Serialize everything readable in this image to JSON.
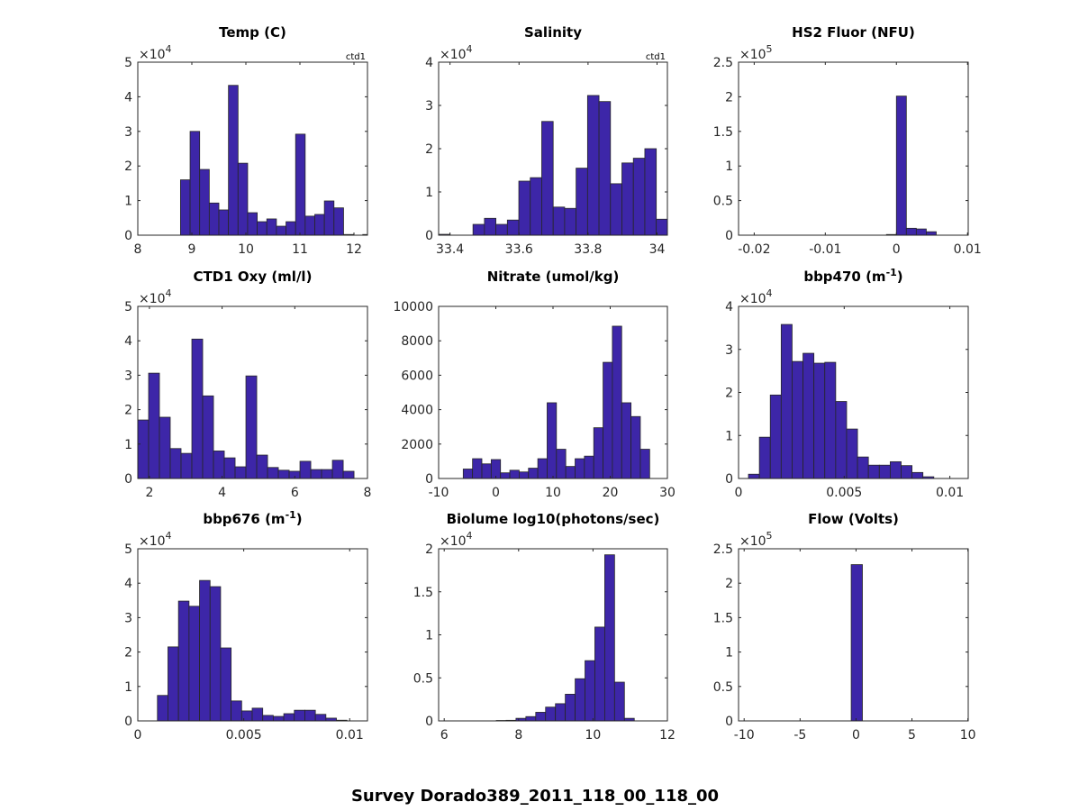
{
  "figure_title": "Survey Dorado389_2011_118_00_118_00",
  "colors": {
    "bar": "#3d26a8",
    "edge": "#262626",
    "axis": "#262626"
  },
  "chart_data": [
    {
      "type": "bar",
      "title": "Temp (C)",
      "title_sup": "",
      "title_end": "",
      "corner_label": "ctd1",
      "exponent": "4",
      "xlim": [
        8,
        12.25
      ],
      "ylim": [
        0,
        5
      ],
      "xticks": [
        {
          "v": 8,
          "label": "8"
        },
        {
          "v": 9,
          "label": "9"
        },
        {
          "v": 10,
          "label": "10"
        },
        {
          "v": 11,
          "label": "11"
        },
        {
          "v": 12,
          "label": "12"
        }
      ],
      "yticks": [
        {
          "v": 0,
          "label": "0"
        },
        {
          "v": 1,
          "label": "1"
        },
        {
          "v": 2,
          "label": "2"
        },
        {
          "v": 3,
          "label": "3"
        },
        {
          "v": 4,
          "label": "4"
        },
        {
          "v": 5,
          "label": "5"
        }
      ],
      "bin_start": 8.79,
      "bin_width": 0.1775,
      "counts": [
        1.6,
        3.0,
        1.9,
        0.93,
        0.73,
        4.33,
        2.08,
        0.65,
        0.39,
        0.47,
        0.26,
        0.39,
        2.92,
        0.55,
        0.6,
        0.99,
        0.79,
        0.02,
        0,
        0.02
      ]
    },
    {
      "type": "bar",
      "title": "Salinity",
      "title_sup": "",
      "title_end": "",
      "corner_label": "ctd1",
      "exponent": "4",
      "xlim": [
        33.367,
        34.03
      ],
      "ylim": [
        0,
        4
      ],
      "xticks": [
        {
          "v": 33.4,
          "label": "33.4"
        },
        {
          "v": 33.6,
          "label": "33.6"
        },
        {
          "v": 33.8,
          "label": "33.8"
        },
        {
          "v": 34,
          "label": "34"
        }
      ],
      "yticks": [
        {
          "v": 0,
          "label": "0"
        },
        {
          "v": 1,
          "label": "1"
        },
        {
          "v": 2,
          "label": "2"
        },
        {
          "v": 3,
          "label": "3"
        },
        {
          "v": 4,
          "label": "4"
        }
      ],
      "bin_start": 33.367,
      "bin_width": 0.0332,
      "counts": [
        0.02,
        0,
        0,
        0.25,
        0.39,
        0.25,
        0.35,
        1.25,
        1.33,
        2.63,
        0.65,
        0.62,
        1.55,
        3.23,
        3.09,
        1.19,
        1.67,
        1.78,
        2.0,
        0.37
      ]
    },
    {
      "type": "bar",
      "title": "HS2 Fluor (NFU)",
      "title_sup": "",
      "title_end": "",
      "corner_label": "",
      "exponent": "5",
      "xlim": [
        -0.0222,
        0.0101
      ],
      "ylim": [
        0,
        2.5
      ],
      "xticks": [
        {
          "v": -0.02,
          "label": "-0.02"
        },
        {
          "v": -0.01,
          "label": "-0.01"
        },
        {
          "v": 0,
          "label": "0"
        },
        {
          "v": 0.01,
          "label": "0.01"
        }
      ],
      "yticks": [
        {
          "v": 0,
          "label": "0"
        },
        {
          "v": 0.5,
          "label": "0.5"
        },
        {
          "v": 1,
          "label": "1"
        },
        {
          "v": 1.5,
          "label": "1.5"
        },
        {
          "v": 2,
          "label": "2"
        },
        {
          "v": 2.5,
          "label": "2.5"
        }
      ],
      "bin_start": -0.0014,
      "bin_width": 0.0014,
      "counts": [
        0.01,
        2.01,
        0.1,
        0.09,
        0.05
      ]
    },
    {
      "type": "bar",
      "title": "CTD1 Oxy (ml/l)",
      "title_sup": "",
      "title_end": "",
      "corner_label": "",
      "exponent": "4",
      "xlim": [
        1.68,
        8
      ],
      "ylim": [
        0,
        5
      ],
      "xticks": [
        {
          "v": 2,
          "label": "2"
        },
        {
          "v": 4,
          "label": "4"
        },
        {
          "v": 6,
          "label": "6"
        },
        {
          "v": 8,
          "label": "8"
        }
      ],
      "yticks": [
        {
          "v": 0,
          "label": "0"
        },
        {
          "v": 1,
          "label": "1"
        },
        {
          "v": 2,
          "label": "2"
        },
        {
          "v": 3,
          "label": "3"
        },
        {
          "v": 4,
          "label": "4"
        },
        {
          "v": 5,
          "label": "5"
        }
      ],
      "bin_start": 1.68,
      "bin_width": 0.2975,
      "counts": [
        1.7,
        3.06,
        1.78,
        0.87,
        0.73,
        4.05,
        2.4,
        0.8,
        0.6,
        0.34,
        2.98,
        0.68,
        0.32,
        0.24,
        0.21,
        0.5,
        0.26,
        0.26,
        0.53,
        0.21
      ]
    },
    {
      "type": "bar",
      "title": "Nitrate (umol/kg)",
      "title_sup": "",
      "title_end": "",
      "corner_label": "",
      "exponent": "",
      "xlim": [
        -10,
        30
      ],
      "ylim": [
        0,
        10000
      ],
      "xticks": [
        {
          "v": -10,
          "label": "-10"
        },
        {
          "v": 0,
          "label": "0"
        },
        {
          "v": 10,
          "label": "10"
        },
        {
          "v": 20,
          "label": "20"
        },
        {
          "v": 30,
          "label": "30"
        }
      ],
      "yticks": [
        {
          "v": 0,
          "label": "0"
        },
        {
          "v": 2000,
          "label": "2000"
        },
        {
          "v": 4000,
          "label": "4000"
        },
        {
          "v": 6000,
          "label": "6000"
        },
        {
          "v": 8000,
          "label": "8000"
        },
        {
          "v": 10000,
          "label": "10000"
        }
      ],
      "bin_start": -5.7,
      "bin_width": 1.63,
      "counts": [
        550,
        1150,
        850,
        1100,
        330,
        480,
        380,
        600,
        1150,
        4400,
        1700,
        700,
        1150,
        1300,
        2950,
        6750,
        8850,
        4400,
        3600,
        1700
      ]
    },
    {
      "type": "bar",
      "title": "bbp470 (m",
      "title_sup": "-1",
      "title_end": ")",
      "corner_label": "",
      "exponent": "4",
      "xlim": [
        0,
        0.01087
      ],
      "ylim": [
        0,
        4
      ],
      "xticks": [
        {
          "v": 0,
          "label": "0"
        },
        {
          "v": 0.005,
          "label": "0.005"
        },
        {
          "v": 0.01,
          "label": "0.01"
        }
      ],
      "yticks": [
        {
          "v": 0,
          "label": "0"
        },
        {
          "v": 1,
          "label": "1"
        },
        {
          "v": 2,
          "label": "2"
        },
        {
          "v": 3,
          "label": "3"
        },
        {
          "v": 4,
          "label": "4"
        }
      ],
      "bin_start": 0.00047,
      "bin_width": 0.000516,
      "counts": [
        0.1,
        0.96,
        1.94,
        3.58,
        2.72,
        2.91,
        2.68,
        2.7,
        1.79,
        1.15,
        0.5,
        0.31,
        0.31,
        0.39,
        0.3,
        0.14,
        0.04
      ]
    },
    {
      "type": "bar",
      "title": "bbp676 (m",
      "title_sup": "-1",
      "title_end": ")",
      "corner_label": "",
      "exponent": "4",
      "xlim": [
        0,
        0.01084
      ],
      "ylim": [
        0,
        5
      ],
      "xticks": [
        {
          "v": 0,
          "label": "0"
        },
        {
          "v": 0.005,
          "label": "0.005"
        },
        {
          "v": 0.01,
          "label": "0.01"
        }
      ],
      "yticks": [
        {
          "v": 0,
          "label": "0"
        },
        {
          "v": 1,
          "label": "1"
        },
        {
          "v": 2,
          "label": "2"
        },
        {
          "v": 3,
          "label": "3"
        },
        {
          "v": 4,
          "label": "4"
        },
        {
          "v": 5,
          "label": "5"
        }
      ],
      "bin_start": 0.000926,
      "bin_width": 0.000497,
      "counts": [
        0.74,
        2.15,
        3.48,
        3.33,
        4.08,
        3.9,
        2.12,
        0.58,
        0.29,
        0.37,
        0.16,
        0.13,
        0.21,
        0.31,
        0.31,
        0.19,
        0.08,
        0.02
      ]
    },
    {
      "type": "bar",
      "title": "Biolume log10(photons/sec)",
      "title_sup": "",
      "title_end": "",
      "corner_label": "",
      "exponent": "4",
      "xlim": [
        5.85,
        12
      ],
      "ylim": [
        0,
        2
      ],
      "xticks": [
        {
          "v": 6,
          "label": "6"
        },
        {
          "v": 8,
          "label": "8"
        },
        {
          "v": 10,
          "label": "10"
        },
        {
          "v": 12,
          "label": "12"
        }
      ],
      "yticks": [
        {
          "v": 0,
          "label": "0"
        },
        {
          "v": 0.5,
          "label": "0.5"
        },
        {
          "v": 1,
          "label": "1"
        },
        {
          "v": 1.5,
          "label": "1.5"
        },
        {
          "v": 2,
          "label": "2"
        }
      ],
      "bin_start": 7.4,
      "bin_width": 0.265,
      "counts": [
        0.005,
        0.007,
        0.03,
        0.05,
        0.1,
        0.16,
        0.2,
        0.31,
        0.49,
        0.7,
        1.09,
        1.93,
        0.45,
        0.03
      ]
    },
    {
      "type": "bar",
      "title": "Flow (Volts)",
      "title_sup": "",
      "title_end": "",
      "corner_label": "",
      "exponent": "5",
      "xlim": [
        -10.5,
        10.03
      ],
      "ylim": [
        0,
        2.5
      ],
      "xticks": [
        {
          "v": -10,
          "label": "-10"
        },
        {
          "v": -5,
          "label": "-5"
        },
        {
          "v": 0,
          "label": "0"
        },
        {
          "v": 5,
          "label": "5"
        },
        {
          "v": 10,
          "label": "10"
        }
      ],
      "yticks": [
        {
          "v": 0,
          "label": "0"
        },
        {
          "v": 0.5,
          "label": "0.5"
        },
        {
          "v": 1,
          "label": "1"
        },
        {
          "v": 1.5,
          "label": "1.5"
        },
        {
          "v": 2,
          "label": "2"
        },
        {
          "v": 2.5,
          "label": "2.5"
        }
      ],
      "bin_start": -0.43,
      "bin_width": 1.0,
      "counts": [
        2.27
      ]
    }
  ]
}
